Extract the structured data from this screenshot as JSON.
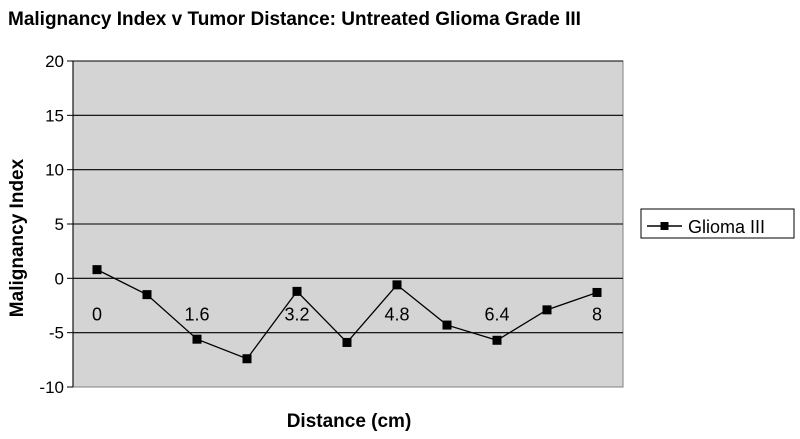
{
  "chart_data": {
    "type": "line",
    "title": "Malignancy Index v Tumor Distance: Untreated Glioma Grade III",
    "xlabel": "Distance (cm)",
    "ylabel": "Malignancy Index",
    "ylim": [
      -10,
      20
    ],
    "yticks": [
      "20",
      "15",
      "10",
      "5",
      "0",
      "-5",
      "-10"
    ],
    "x_tick_labels": [
      "0",
      "1.6",
      "3.2",
      "4.8",
      "6.4",
      "8"
    ],
    "grid": "horizontal",
    "legend_position": "right",
    "series": [
      {
        "name": "Glioma III",
        "color": "#000000",
        "marker": "square",
        "x": [
          0,
          0.8,
          1.6,
          2.4,
          3.2,
          4.0,
          4.8,
          5.6,
          6.4,
          7.2,
          8.0
        ],
        "values": [
          0.8,
          -1.5,
          -5.6,
          -7.4,
          -1.2,
          -5.9,
          -0.6,
          -4.3,
          -5.7,
          -2.9,
          -1.3
        ]
      }
    ]
  },
  "colors": {
    "plot_background": "#d4d4d4",
    "gridline": "#000000",
    "line": "#000000"
  }
}
